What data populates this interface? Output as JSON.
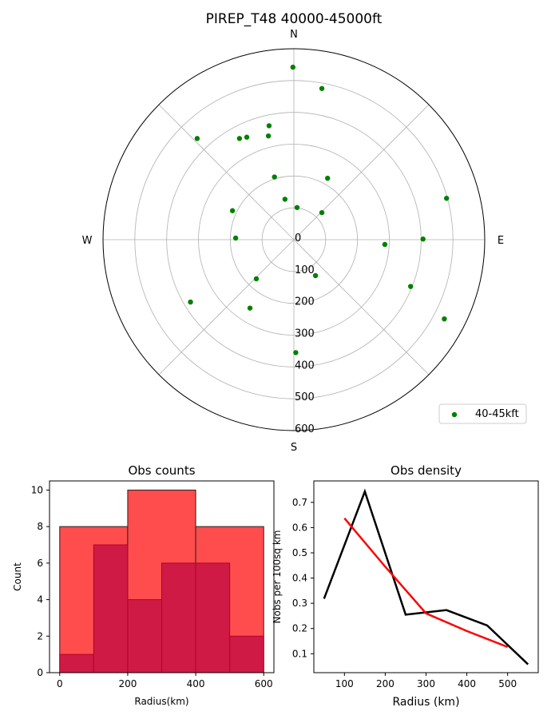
{
  "figure": {
    "title": "PIREP_T48 40000-45000ft"
  },
  "chart_data": [
    {
      "type": "scatter",
      "projection": "polar",
      "title": "PIREP_T48 40000-45000ft",
      "direction_labels": [
        "N",
        "E",
        "S",
        "W"
      ],
      "r_ticks": [
        0,
        100,
        200,
        300,
        400,
        500,
        600
      ],
      "r_tick_labels": [
        "0",
        "100",
        "200",
        "300",
        "400",
        "500",
        "600"
      ],
      "rlim": [
        0,
        600
      ],
      "grid": true,
      "legend": "bottom-right",
      "series": [
        {
          "name": "40-45kft",
          "color": "#008000",
          "points_xy_km": [
            [
              -3,
              542
            ],
            [
              88,
              475
            ],
            [
              -148,
              322
            ],
            [
              -78,
              358
            ],
            [
              -80,
              326
            ],
            [
              -171,
              318
            ],
            [
              -304,
              318
            ],
            [
              -61,
              197
            ],
            [
              106,
              193
            ],
            [
              -28,
              127
            ],
            [
              10,
              101
            ],
            [
              88,
              85
            ],
            [
              -193,
              91
            ],
            [
              -183,
              5
            ],
            [
              -118,
              -123
            ],
            [
              -325,
              -196
            ],
            [
              -138,
              -215
            ],
            [
              6,
              -355
            ],
            [
              68,
              -113
            ],
            [
              286,
              -15
            ],
            [
              406,
              2
            ],
            [
              480,
              130
            ],
            [
              367,
              -147
            ],
            [
              473,
              -249
            ]
          ]
        }
      ]
    },
    {
      "type": "bar",
      "subtype": "histogram",
      "title": "Obs counts",
      "xlabel": "Radius(km)",
      "ylabel": "Count",
      "xlim": [
        -30,
        630
      ],
      "ylim": [
        0,
        10.5
      ],
      "xticks": [
        0,
        200,
        400,
        600
      ],
      "yticks": [
        0,
        2,
        4,
        6,
        8,
        10
      ],
      "series": [
        {
          "name": "",
          "color": "#ff4d4d",
          "bin_edges": [
            0,
            200,
            400,
            600
          ],
          "values": [
            8,
            10,
            8
          ]
        },
        {
          "name": "",
          "color": "#cc1744",
          "bin_edges": [
            0,
            100,
            200,
            300,
            400,
            500,
            600
          ],
          "values": [
            1,
            7,
            4,
            6,
            6,
            2
          ]
        }
      ]
    },
    {
      "type": "line",
      "title": "Obs density",
      "xlabel": "Radius (km)",
      "ylabel": "Nobs per 100sq km",
      "xlim": [
        25,
        575
      ],
      "ylim": [
        0.025,
        0.785
      ],
      "xticks": [
        100,
        200,
        300,
        400,
        500
      ],
      "yticks": [
        0.1,
        0.2,
        0.3,
        0.4,
        0.5,
        0.6,
        0.7
      ],
      "series": [
        {
          "name": "",
          "color": "#000000",
          "x": [
            50,
            150,
            250,
            350,
            450,
            550
          ],
          "y": [
            0.318,
            0.743,
            0.255,
            0.273,
            0.212,
            0.058
          ]
        },
        {
          "name": "",
          "color": "#ff0000",
          "x": [
            100,
            200,
            300,
            400,
            500
          ],
          "y": [
            0.637,
            0.445,
            0.26,
            0.19,
            0.127
          ]
        }
      ]
    }
  ]
}
